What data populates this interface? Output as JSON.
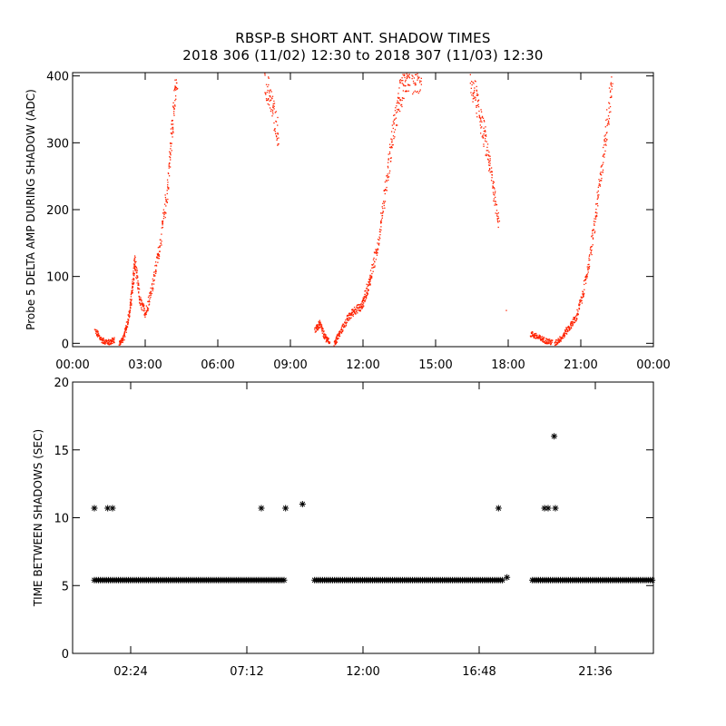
{
  "title_line1": "RBSP-B SHORT ANT. SHADOW TIMES",
  "title_line2": "2018 306 (11/02) 12:30 to 2018 307 (11/03) 12:30",
  "colors": {
    "series_top": "#ff2200",
    "series_bottom": "#000000",
    "axes": "#000000",
    "background": "#ffffff"
  },
  "chart_data": [
    {
      "type": "scatter",
      "ylabel": "Probe 5 DELTA AMP DURING SHADOW (ADC)",
      "xlabel": "",
      "x_unit": "hours",
      "xlim": [
        0,
        24
      ],
      "ylim": [
        -5,
        405
      ],
      "grid": false,
      "x_ticks": [
        0,
        3,
        6,
        9,
        12,
        15,
        18,
        21,
        24
      ],
      "x_tick_labels": [
        "00:00",
        "03:00",
        "06:00",
        "09:00",
        "12:00",
        "15:00",
        "18:00",
        "21:00",
        "00:00"
      ],
      "y_ticks": [
        0,
        100,
        200,
        300,
        400
      ],
      "y_tick_labels": [
        "0",
        "100",
        "200",
        "300",
        "400"
      ],
      "marker": "dot",
      "segments": [
        {
          "x": [
            0.9,
            1.2,
            1.5,
            1.7
          ],
          "y": [
            20,
            5,
            2,
            6
          ]
        },
        {
          "x": [
            1.9,
            2.1,
            2.3,
            2.45,
            2.55,
            2.75,
            3.0,
            3.3,
            3.6,
            3.9,
            4.1,
            4.3
          ],
          "y": [
            0,
            10,
            40,
            80,
            125,
            65,
            45,
            90,
            150,
            230,
            330,
            400
          ]
        },
        {
          "x": [
            7.9,
            8.2,
            8.5
          ],
          "y": [
            400,
            360,
            310
          ]
        },
        {
          "x": [
            10.0,
            10.2,
            10.4,
            10.6
          ],
          "y": [
            20,
            30,
            10,
            3
          ]
        },
        {
          "x": [
            10.8,
            11.0,
            11.3,
            11.6,
            11.9,
            12.1,
            12.3,
            12.6,
            12.9,
            13.2,
            13.5,
            13.8,
            14.1,
            14.4
          ],
          "y": [
            0,
            15,
            35,
            50,
            55,
            75,
            100,
            150,
            230,
            310,
            370,
            400,
            395,
            400
          ]
        },
        {
          "x": [
            16.4,
            16.7,
            17.0,
            17.3,
            17.6
          ],
          "y": [
            400,
            360,
            310,
            250,
            180
          ]
        },
        {
          "x": [
            17.9
          ],
          "y": [
            50
          ]
        },
        {
          "x": [
            18.9,
            19.2,
            19.5,
            19.8
          ],
          "y": [
            15,
            10,
            5,
            2
          ]
        },
        {
          "x": [
            19.9,
            20.2,
            20.5,
            20.8,
            21.1,
            21.4,
            21.7,
            22.0,
            22.3
          ],
          "y": [
            0,
            10,
            25,
            40,
            80,
            140,
            220,
            310,
            400
          ]
        }
      ]
    },
    {
      "type": "scatter",
      "ylabel": "TIME BETWEEN SHADOWS (SEC)",
      "xlabel": "",
      "x_unit": "hours",
      "xlim": [
        0,
        24
      ],
      "ylim": [
        0,
        20
      ],
      "grid": false,
      "x_ticks": [
        2.4,
        7.2,
        12.0,
        16.8,
        21.6
      ],
      "x_tick_labels": [
        "02:24",
        "07:12",
        "12:00",
        "16:48",
        "21:36"
      ],
      "y_ticks": [
        0,
        5,
        10,
        15,
        20
      ],
      "y_tick_labels": [
        "0",
        "5",
        "10",
        "15",
        "20"
      ],
      "marker": "asterisk",
      "baseline_value": 5.4,
      "baseline_ranges": [
        [
          0.9,
          8.8
        ],
        [
          10.0,
          17.8
        ],
        [
          19.0,
          24.0
        ]
      ],
      "points": {
        "x": [
          0.9,
          1.45,
          1.65,
          7.8,
          8.8,
          9.5,
          17.6,
          17.95,
          19.5,
          19.65,
          19.9,
          19.95
        ],
        "y": [
          10.7,
          10.7,
          10.7,
          10.7,
          10.7,
          11.0,
          10.7,
          5.6,
          10.7,
          10.7,
          16.0,
          10.7
        ]
      }
    }
  ]
}
